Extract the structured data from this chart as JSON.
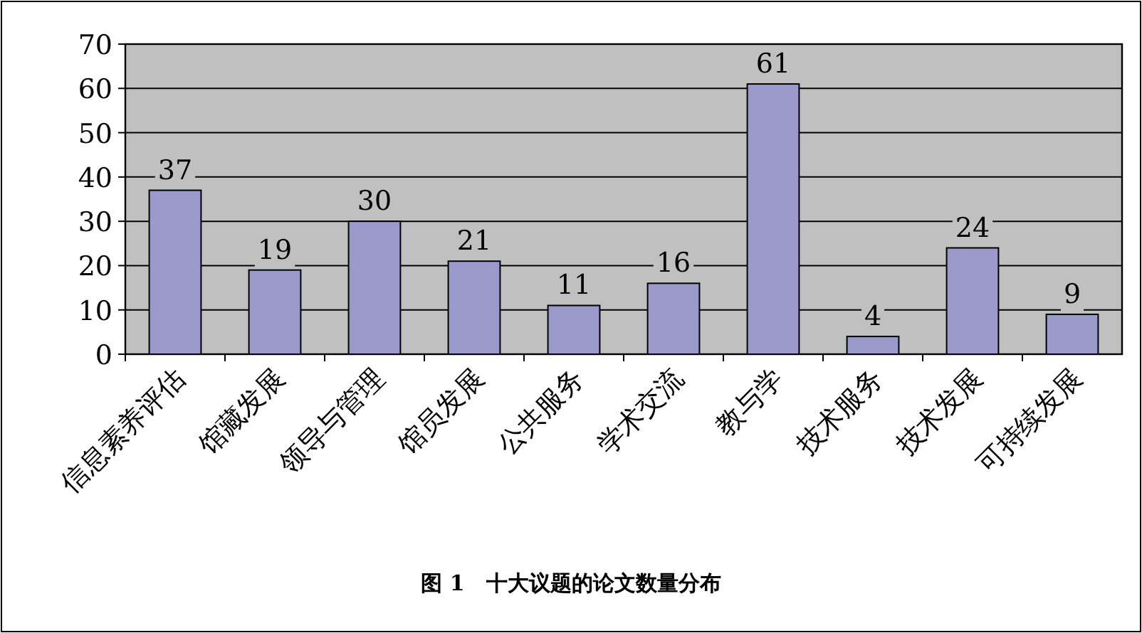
{
  "chart_data": {
    "type": "bar",
    "title": "图 1　十大议题的论文数量分布",
    "categories": [
      "信息素养评估",
      "馆藏发展",
      "领导与管理",
      "馆员发展",
      "公共服务",
      "学术交流",
      "教与学",
      "技术服务",
      "技术发展",
      "可持续发展"
    ],
    "values": [
      37,
      19,
      30,
      21,
      11,
      16,
      61,
      4,
      24,
      9
    ],
    "color": "#9999cc",
    "ylim": [
      0,
      70
    ],
    "yticks": [
      0,
      10,
      20,
      30,
      40,
      50,
      60,
      70
    ],
    "grid": "y",
    "data_labels": true
  }
}
